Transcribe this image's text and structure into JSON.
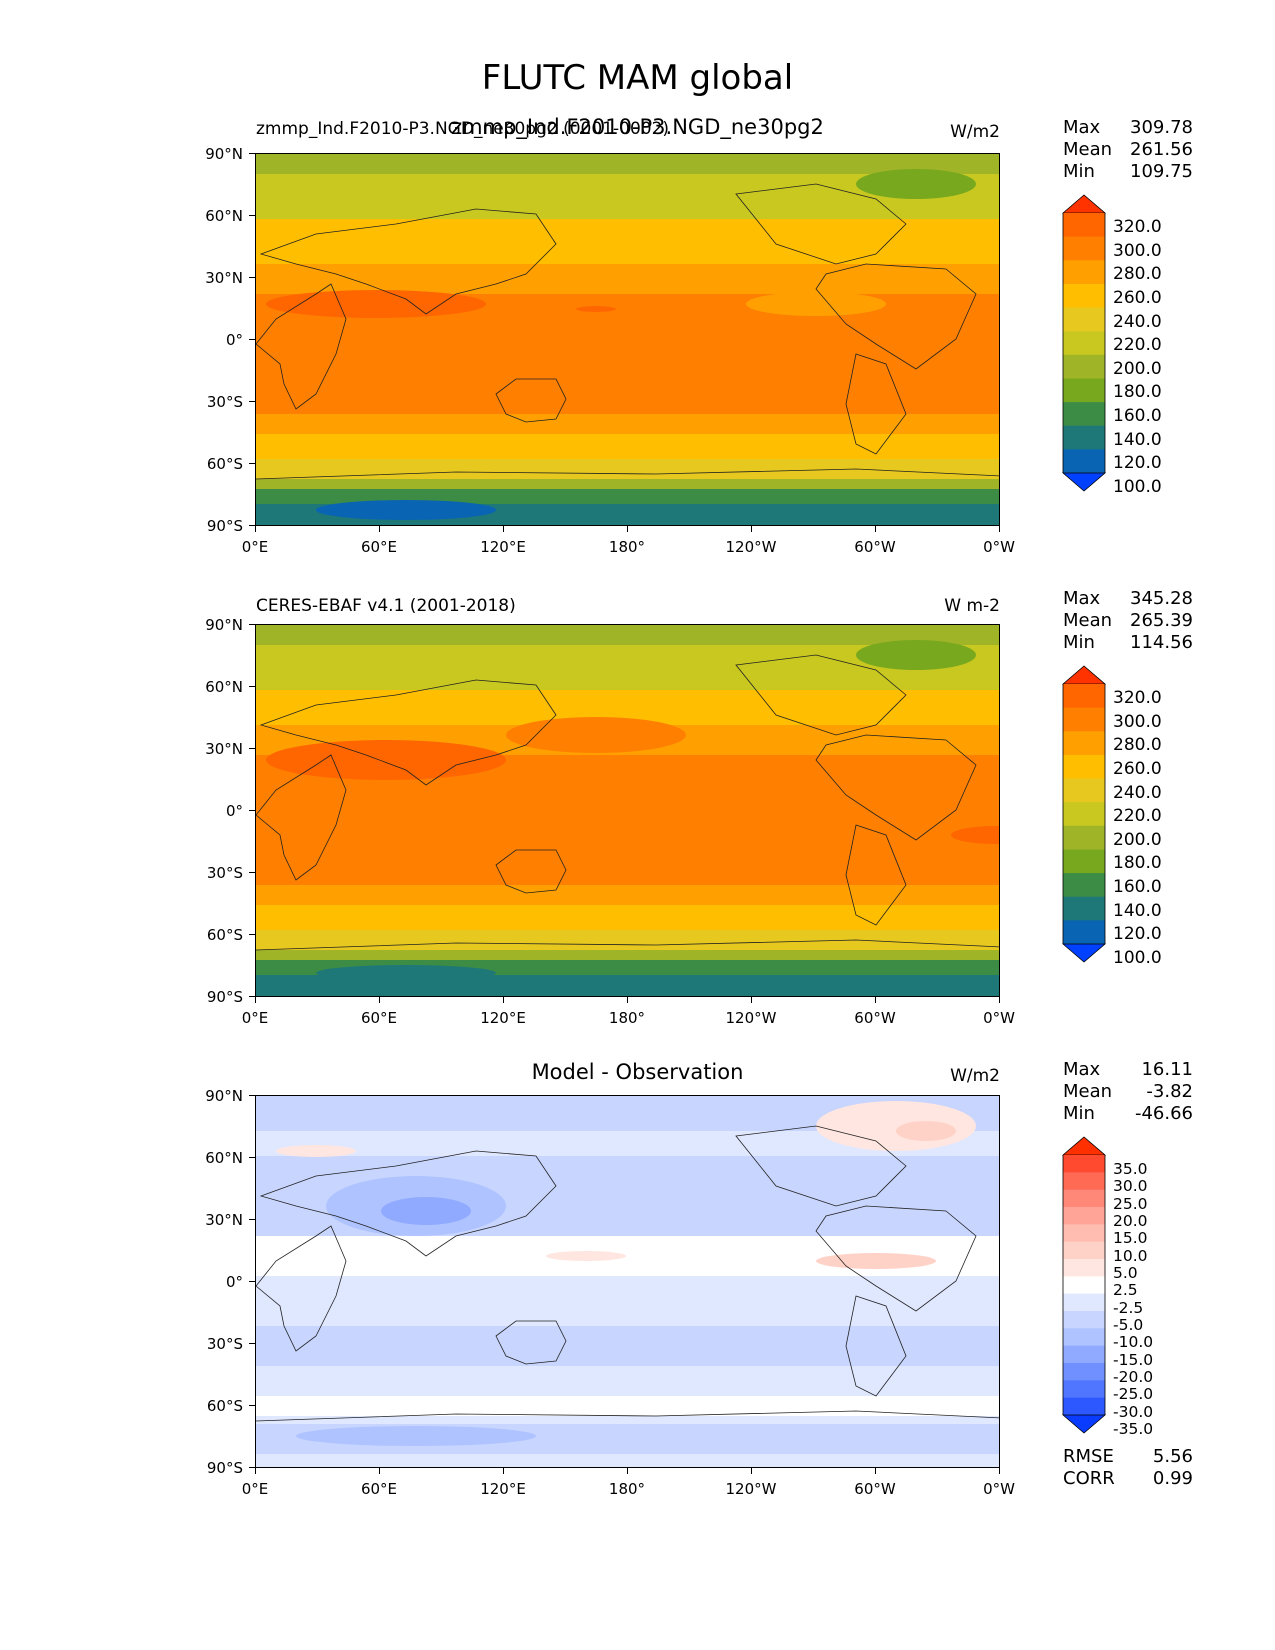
{
  "figure": {
    "title": "FLUTC MAM global"
  },
  "chart_data": [
    {
      "type": "heatmap",
      "title": "zmmp_Ind.F2010-P3.NGD_ne30pg2",
      "left_title": "zmmp_Ind.F2010-P3.NGD_ne30pg2 (0001-0002)",
      "units": "W/m2",
      "x_ticks": [
        "0°E",
        "60°E",
        "120°E",
        "180°",
        "120°W",
        "60°W",
        "0°W"
      ],
      "y_ticks": [
        "90°N",
        "60°N",
        "30°N",
        "0°",
        "30°S",
        "60°S",
        "90°S"
      ],
      "xlim": [
        0,
        360
      ],
      "ylim": [
        -90,
        90
      ],
      "stats": {
        "max_label": "Max",
        "max": "309.78",
        "mean_label": "Mean",
        "mean": "261.56",
        "min_label": "Min",
        "min": "109.75"
      },
      "colorbar": {
        "labels": [
          "320.0",
          "300.0",
          "280.0",
          "260.0",
          "240.0",
          "220.0",
          "200.0",
          "180.0",
          "160.0",
          "140.0",
          "120.0",
          "100.0"
        ],
        "colors": [
          "#ff3300",
          "#ff6600",
          "#ff8000",
          "#ffa000",
          "#ffbf00",
          "#e6c81e",
          "#c8c820",
          "#a0b428",
          "#78a81e",
          "#3c8c46",
          "#1e7878",
          "#0a64b4",
          "#0040ff"
        ]
      }
    },
    {
      "type": "heatmap",
      "title": "CERES-EBAF v4.1 (2001-2018)",
      "units": "W m-2",
      "x_ticks": [
        "0°E",
        "60°E",
        "120°E",
        "180°",
        "120°W",
        "60°W",
        "0°W"
      ],
      "y_ticks": [
        "90°N",
        "60°N",
        "30°N",
        "0°",
        "30°S",
        "60°S",
        "90°S"
      ],
      "xlim": [
        0,
        360
      ],
      "ylim": [
        -90,
        90
      ],
      "stats": {
        "max_label": "Max",
        "max": "345.28",
        "mean_label": "Mean",
        "mean": "265.39",
        "min_label": "Min",
        "min": "114.56"
      },
      "colorbar": {
        "labels": [
          "320.0",
          "300.0",
          "280.0",
          "260.0",
          "240.0",
          "220.0",
          "200.0",
          "180.0",
          "160.0",
          "140.0",
          "120.0",
          "100.0"
        ],
        "colors": [
          "#ff3300",
          "#ff6600",
          "#ff8000",
          "#ffa000",
          "#ffbf00",
          "#e6c81e",
          "#c8c820",
          "#a0b428",
          "#78a81e",
          "#3c8c46",
          "#1e7878",
          "#0a64b4",
          "#0040ff"
        ]
      }
    },
    {
      "type": "heatmap",
      "title": "Model - Observation",
      "units": "W/m2",
      "x_ticks": [
        "0°E",
        "60°E",
        "120°E",
        "180°",
        "120°W",
        "60°W",
        "0°W"
      ],
      "y_ticks": [
        "90°N",
        "60°N",
        "30°N",
        "0°",
        "30°S",
        "60°S",
        "90°S"
      ],
      "xlim": [
        0,
        360
      ],
      "ylim": [
        -90,
        90
      ],
      "stats": {
        "max_label": "Max",
        "max": "16.11",
        "mean_label": "Mean",
        "mean": "-3.82",
        "min_label": "Min",
        "min": "-46.66"
      },
      "extra_stats": {
        "rmse_label": "RMSE",
        "rmse": "5.56",
        "corr_label": "CORR",
        "corr": "0.99"
      },
      "colorbar": {
        "labels": [
          "35.0",
          "30.0",
          "25.0",
          "20.0",
          "15.0",
          "10.0",
          "5.0",
          "2.5",
          "-2.5",
          "-5.0",
          "-10.0",
          "-15.0",
          "-20.0",
          "-25.0",
          "-30.0",
          "-35.0"
        ],
        "colors": [
          "#ff3000",
          "#ff4a30",
          "#ff6a55",
          "#ff8878",
          "#ffa496",
          "#ffbcb0",
          "#ffd2c8",
          "#ffe6e0",
          "#ffffff",
          "#e0e8ff",
          "#c8d6ff",
          "#aec3ff",
          "#90aaff",
          "#7090ff",
          "#5075ff",
          "#2e58ff",
          "#0a3cff"
        ]
      }
    }
  ]
}
